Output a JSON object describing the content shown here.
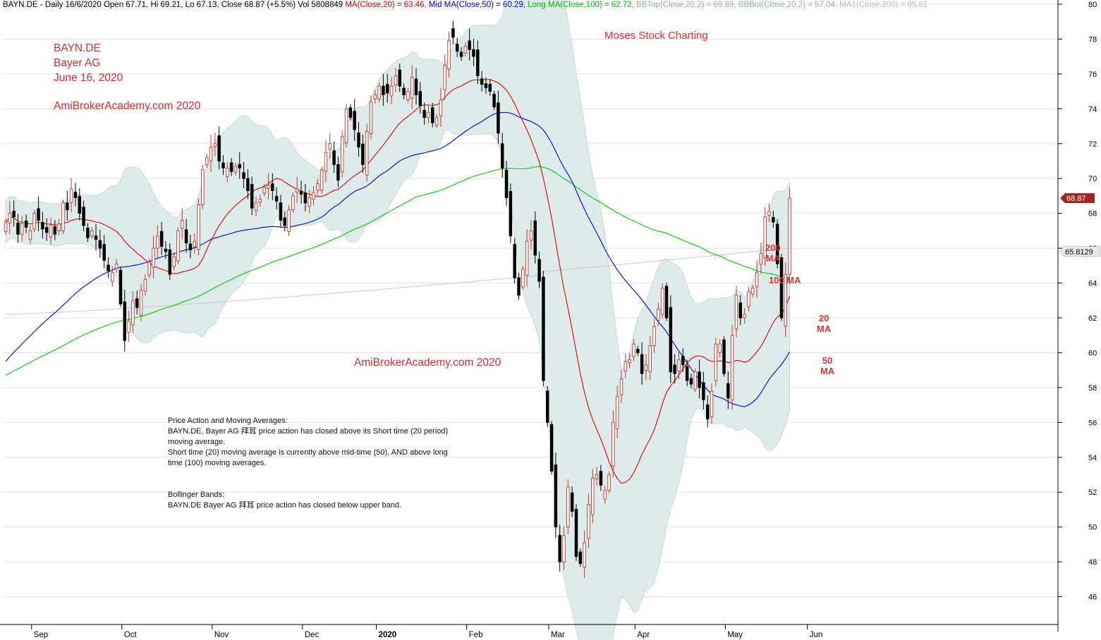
{
  "header": {
    "prefix": "BAYN.DE - Daily 16/6/2020 Open 67.71, Hi 69.21, Lo 67.13, Close 68.87 (+5.5%) Vol 5808849 ",
    "ma20": "MA(Close,20) = 63.46,",
    "ma50": " Mid MA(Close,50) = 60.29,",
    "ma100": " Long MA(Close,100) = 62.72,",
    "bbtop": " BBTop(Close,20,2) = 69.89,",
    "bbbot": " BBBot(Close,20,2) = 57.04,",
    "ma200": " MA1(Close,200) = 65.81"
  },
  "colors": {
    "ma20": "#e00000",
    "ma50": "#0000dd",
    "ma100": "#00cc00",
    "ma200": "#c8c8c8",
    "band": "#ddeceb",
    "bandEdge": "#bdd4d3",
    "upCandle": "#c0392b",
    "downCandle": "#000000",
    "last_price_tag": "#a6241b",
    "ma200_tag": "#e8e8e8"
  },
  "titles": {
    "symbol": "BAYN.DE",
    "company": "Bayer AG",
    "date": "June 16, 2020",
    "site1": "AmiBrokerAcademy.com  2020",
    "site2": "AmiBrokerAcademy.com  2020",
    "moses": "Moses Stock Charting"
  },
  "ma_labels": {
    "ma200": "200\nMA",
    "ma100": "100 MA",
    "ma20": "20\nMA",
    "ma50": "50\nMA"
  },
  "commentary": {
    "pa_title": "Price Action and Moving Averages:",
    "pa_line1": "BAYN.DE, Bayer AG 拜耳 price action has closed above its Short time (20 period)",
    "pa_line2": "moving average.",
    "pa_line3": "Short time (20) moving average is currently above mid-time (50), AND above long",
    "pa_line4": "time (100) moving averages.",
    "bb_title": "Bollinger Bands:",
    "bb_line1": "BAYN.DE Bayer AG 拜耳 price action has closed below upper band."
  },
  "tags": {
    "last_price": "68.87",
    "ma200": "65.8129"
  },
  "chart_data": {
    "type": "candlestick",
    "symbol": "BAYN.DE",
    "ylim": [
      44,
      80
    ],
    "yticks": [
      "46",
      "48",
      "50",
      "52",
      "54",
      "56",
      "58",
      "60",
      "62",
      "64",
      "66",
      "68",
      "70",
      "72",
      "74",
      "76",
      "78",
      "80"
    ],
    "xticks": [
      "Sep",
      "Oct",
      "Nov",
      "Dec",
      "2020",
      "Feb",
      "Mar",
      "Apr",
      "May",
      "Jun"
    ],
    "last_close": 68.87,
    "indicator_values": {
      "MA20": 63.46,
      "MA50": 60.29,
      "MA100": 62.72,
      "BBTop": 69.89,
      "BBBot": 57.04,
      "MA200": 65.81
    },
    "close": [
      67.5,
      68.0,
      67.8,
      66.8,
      67.4,
      67.2,
      67.0,
      68.0,
      67.6,
      67.1,
      66.9,
      67.3,
      66.8,
      67.4,
      68.6,
      68.2,
      69.4,
      68.9,
      68.0,
      67.3,
      66.6,
      67.0,
      66.5,
      66.0,
      65.3,
      64.7,
      64.6,
      65.1,
      62.8,
      60.7,
      61.8,
      63.0,
      62.6,
      63.6,
      64.2,
      65.2,
      66.0,
      66.7,
      66.1,
      65.8,
      64.5,
      65.5,
      67.0,
      67.6,
      66.3,
      65.9,
      66.4,
      68.5,
      70.5,
      71.2,
      71.8,
      72.0,
      71.0,
      70.6,
      70.6,
      70.4,
      70.7,
      70.6,
      70.0,
      69.3,
      68.3,
      68.6,
      68.8,
      69.5,
      69.6,
      69.3,
      68.7,
      67.6,
      67.3,
      68.2,
      69.0,
      69.4,
      69.1,
      68.6,
      68.9,
      69.2,
      69.7,
      70.5,
      71.5,
      72.0,
      70.8,
      69.9,
      72.4,
      74.0,
      73.5,
      72.8,
      71.8,
      70.8,
      72.7,
      74.4,
      74.8,
      75.3,
      74.8,
      74.9,
      75.3,
      75.9,
      75.3,
      74.8,
      75.0,
      75.8,
      74.8,
      74.2,
      73.5,
      73.8,
      73.2,
      73.5,
      74.5,
      76.5,
      77.9,
      78.1,
      77.3,
      77.0,
      77.6,
      77.4,
      77.0,
      75.9,
      75.4,
      75.2,
      75.0,
      74.1,
      72.6,
      70.6,
      68.9,
      66.7,
      64.3,
      63.3,
      64.8,
      66.4,
      67.0,
      65.6,
      64.1,
      58.4,
      56.0,
      53.2,
      50.0,
      48.0,
      49.5,
      52.3,
      50.9,
      48.3,
      47.9,
      49.1,
      51.3,
      52.8,
      53.0,
      52.4,
      52.1,
      53.0,
      56.0,
      57.5,
      58.5,
      59.5,
      59.6,
      60.5,
      60.0,
      58.8,
      59.3,
      60.4,
      61.5,
      62.5,
      63.7,
      62.0,
      58.9,
      58.8,
      59.6,
      59.3,
      58.4,
      58.2,
      58.9,
      58.0,
      57.3,
      56.2,
      57.8,
      60.5,
      60.5,
      58.8,
      57.4,
      61.0,
      63.3,
      62.0,
      62.2,
      63.5,
      63.7,
      64.6,
      65.7,
      67.8,
      68.1,
      67.5,
      65.1,
      62.0,
      64.5,
      68.87
    ]
  }
}
